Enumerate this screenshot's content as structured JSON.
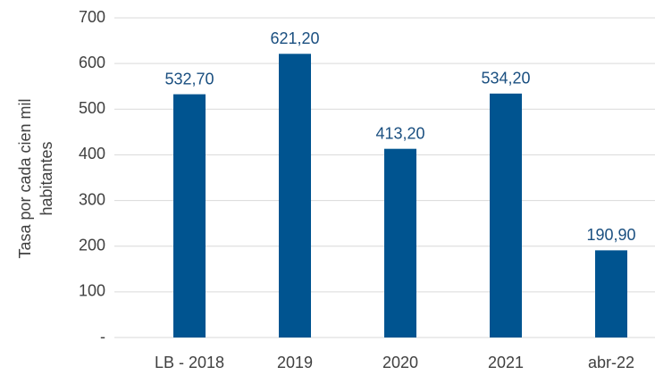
{
  "chart_data": {
    "type": "bar",
    "ylabel": "Tasa por cada cien mil habitantes",
    "categories": [
      "LB - 2018",
      "2019",
      "2020",
      "2021",
      "abr-22"
    ],
    "values": [
      532.7,
      621.2,
      413.2,
      534.2,
      190.9
    ],
    "value_labels": [
      "532,70",
      "621,20",
      "413,20",
      "534,20",
      "190,90"
    ],
    "color": "#005490",
    "ylim": [
      0,
      700
    ],
    "yticks": [
      {
        "value": 0,
        "label": "-"
      },
      100,
      200,
      300,
      400,
      500,
      600,
      700
    ],
    "grid": true
  }
}
